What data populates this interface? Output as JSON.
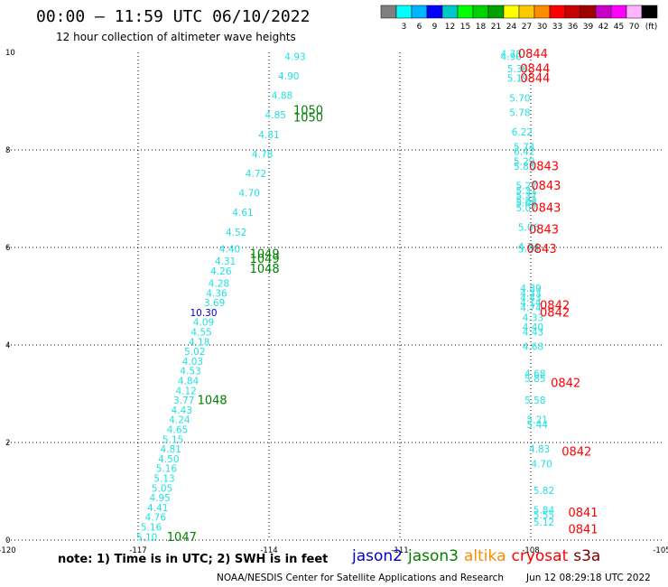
{
  "header": {
    "title": "00:00 – 11:59 UTC 06/10/2022",
    "subtitle": "12 hour collection of altimeter wave heights"
  },
  "colorbar": {
    "unit": "(ft)",
    "colors": [
      "#808080",
      "#00ffff",
      "#00b4ff",
      "#0000ff",
      "#00c8c8",
      "#00ff00",
      "#00d200",
      "#00a000",
      "#ffff00",
      "#ffc800",
      "#ff8c00",
      "#ff0000",
      "#c80000",
      "#a00000",
      "#c800c8",
      "#ff00ff",
      "#ffb4ff",
      "#000000"
    ],
    "labels": [
      "3",
      "6",
      "9",
      "12",
      "15",
      "18",
      "21",
      "24",
      "27",
      "30",
      "33",
      "36",
      "39",
      "42",
      "45",
      "70"
    ]
  },
  "footer": {
    "note": "note: 1) Time is in UTC; 2) SWH is in feet",
    "satellites": [
      {
        "name": "jason2",
        "color": "#0000cc"
      },
      {
        "name": "jason3",
        "color": "#008000"
      },
      {
        "name": "altika",
        "color": "#ff8c00"
      },
      {
        "name": "cryosat",
        "color": "#ff0000"
      },
      {
        "name": "s3a",
        "color": "#7a0000"
      }
    ],
    "credit": "NOAA/NESDIS Center for Satellite Applications and Research",
    "stamp": "Jun 12 08:29:18 UTC 2022"
  },
  "chart_data": {
    "type": "scatter",
    "title": "00:00 – 11:59 UTC 06/10/2022",
    "subtitle": "12 hour collection of altimeter wave heights",
    "xlim": [
      -120,
      -105
    ],
    "ylim": [
      0,
      10
    ],
    "x_ticks": [
      "-120",
      "-117",
      "-114",
      "-111",
      "-108",
      "-105"
    ],
    "y_ticks": [
      "0",
      "2",
      "4",
      "6",
      "8",
      "10"
    ],
    "grid": true,
    "series": [
      {
        "name": "jason3",
        "color": "#22e0e0",
        "points": [
          {
            "x": -116.8,
            "y": 0.05,
            "label": "5.10"
          },
          {
            "x": -116.7,
            "y": 0.25,
            "label": "5.16"
          },
          {
            "x": -116.6,
            "y": 0.45,
            "label": "4.76"
          },
          {
            "x": -116.55,
            "y": 0.65,
            "label": "4.41"
          },
          {
            "x": -116.5,
            "y": 0.85,
            "label": "4.95"
          },
          {
            "x": -116.45,
            "y": 1.05,
            "label": "5.05"
          },
          {
            "x": -116.4,
            "y": 1.25,
            "label": "5.13"
          },
          {
            "x": -116.35,
            "y": 1.45,
            "label": "5.16"
          },
          {
            "x": -116.3,
            "y": 1.65,
            "label": "4.50"
          },
          {
            "x": -116.25,
            "y": 1.85,
            "label": "4.81"
          },
          {
            "x": -116.2,
            "y": 2.05,
            "label": "5.15"
          },
          {
            "x": -116.1,
            "y": 2.25,
            "label": "4.65"
          },
          {
            "x": -116.05,
            "y": 2.45,
            "label": "4.24"
          },
          {
            "x": -116.0,
            "y": 2.65,
            "label": "4.43"
          },
          {
            "x": -115.95,
            "y": 2.85,
            "label": "3.77"
          },
          {
            "x": -115.9,
            "y": 3.05,
            "label": "4.12"
          },
          {
            "x": -115.85,
            "y": 3.25,
            "label": "4.84"
          },
          {
            "x": -115.8,
            "y": 3.45,
            "label": "4.53"
          },
          {
            "x": -115.75,
            "y": 3.65,
            "label": "4.03"
          },
          {
            "x": -115.7,
            "y": 3.85,
            "label": "5.02"
          },
          {
            "x": -115.6,
            "y": 4.05,
            "label": "4.18"
          },
          {
            "x": -115.55,
            "y": 4.25,
            "label": "4.55"
          },
          {
            "x": -115.5,
            "y": 4.45,
            "label": "4.09"
          },
          {
            "x": -115.25,
            "y": 4.85,
            "label": "3.69"
          },
          {
            "x": -115.2,
            "y": 5.05,
            "label": "4.36"
          },
          {
            "x": -115.15,
            "y": 5.25,
            "label": "4.28"
          },
          {
            "x": -115.1,
            "y": 5.5,
            "label": "4.26"
          },
          {
            "x": -115.0,
            "y": 5.7,
            "label": "4.31"
          },
          {
            "x": -114.9,
            "y": 5.95,
            "label": "4.40"
          },
          {
            "x": -114.75,
            "y": 6.3,
            "label": "4.52"
          },
          {
            "x": -114.6,
            "y": 6.7,
            "label": "4.61"
          },
          {
            "x": -114.45,
            "y": 7.1,
            "label": "4.70"
          },
          {
            "x": -114.3,
            "y": 7.5,
            "label": "4.72"
          },
          {
            "x": -114.15,
            "y": 7.9,
            "label": "4.78"
          },
          {
            "x": -114.0,
            "y": 8.3,
            "label": "4.81"
          },
          {
            "x": -113.85,
            "y": 8.7,
            "label": "4.85"
          },
          {
            "x": -113.7,
            "y": 9.1,
            "label": "4.88"
          },
          {
            "x": -113.55,
            "y": 9.5,
            "label": "4.90"
          },
          {
            "x": -113.4,
            "y": 9.9,
            "label": "4.93"
          }
        ]
      },
      {
        "name": "jason2",
        "color": "#0000cc",
        "points": [
          {
            "x": -115.5,
            "y": 4.65,
            "label": "10.30"
          }
        ]
      },
      {
        "name": "jason3",
        "color": "#008000",
        "points": [
          {
            "x": -116.0,
            "y": 0.05,
            "label": "1047"
          },
          {
            "x": -115.3,
            "y": 2.85,
            "label": "1048"
          },
          {
            "x": -114.1,
            "y": 5.55,
            "label": "1048"
          },
          {
            "x": -114.1,
            "y": 5.75,
            "label": "1049"
          },
          {
            "x": -114.1,
            "y": 5.85,
            "label": "1049"
          },
          {
            "x": -113.1,
            "y": 8.65,
            "label": "1050"
          },
          {
            "x": -113.1,
            "y": 8.8,
            "label": "1050"
          }
        ]
      },
      {
        "name": "jason3",
        "color": "#22e0e0",
        "points": [
          {
            "x": -107.7,
            "y": 0.35,
            "label": "5.12"
          },
          {
            "x": -107.7,
            "y": 0.5,
            "label": "5.55"
          },
          {
            "x": -107.7,
            "y": 0.6,
            "label": "5.84"
          },
          {
            "x": -107.7,
            "y": 1.0,
            "label": "5.82"
          },
          {
            "x": -107.75,
            "y": 1.55,
            "label": "4.70"
          },
          {
            "x": -107.8,
            "y": 1.85,
            "label": "4.83"
          },
          {
            "x": -107.85,
            "y": 2.35,
            "label": "5.44"
          },
          {
            "x": -107.85,
            "y": 2.45,
            "label": "5.21"
          },
          {
            "x": -107.9,
            "y": 2.85,
            "label": "5.58"
          },
          {
            "x": -107.9,
            "y": 3.3,
            "label": "5.85"
          },
          {
            "x": -107.9,
            "y": 3.4,
            "label": "4.68"
          },
          {
            "x": -107.95,
            "y": 3.95,
            "label": "4.68"
          },
          {
            "x": -107.95,
            "y": 4.25,
            "label": "4.43"
          },
          {
            "x": -107.95,
            "y": 4.35,
            "label": "4.40"
          },
          {
            "x": -107.95,
            "y": 4.55,
            "label": "4.33"
          },
          {
            "x": -108.0,
            "y": 4.75,
            "label": "4.74"
          },
          {
            "x": -108.0,
            "y": 4.85,
            "label": "4.14"
          },
          {
            "x": -108.0,
            "y": 4.95,
            "label": "4.43"
          },
          {
            "x": -108.0,
            "y": 5.05,
            "label": "4.33"
          },
          {
            "x": -108.0,
            "y": 5.15,
            "label": "4.89"
          },
          {
            "x": -108.05,
            "y": 5.95,
            "label": "5.00"
          },
          {
            "x": -108.05,
            "y": 6.0,
            "label": "4.74"
          },
          {
            "x": -108.05,
            "y": 6.4,
            "label": "5.06"
          },
          {
            "x": -108.1,
            "y": 6.8,
            "label": "5.07"
          },
          {
            "x": -108.1,
            "y": 6.9,
            "label": "5.08"
          },
          {
            "x": -108.1,
            "y": 6.95,
            "label": "5.22"
          },
          {
            "x": -108.1,
            "y": 7.05,
            "label": "5.37"
          },
          {
            "x": -108.1,
            "y": 7.15,
            "label": "5.31"
          },
          {
            "x": -108.1,
            "y": 7.25,
            "label": "5.27"
          },
          {
            "x": -108.15,
            "y": 7.65,
            "label": "5.83"
          },
          {
            "x": -108.15,
            "y": 7.75,
            "label": "5.29"
          },
          {
            "x": -108.15,
            "y": 7.95,
            "label": "6.42"
          },
          {
            "x": -108.15,
            "y": 8.05,
            "label": "5.74"
          },
          {
            "x": -108.2,
            "y": 8.35,
            "label": "6.22"
          },
          {
            "x": -108.25,
            "y": 8.75,
            "label": "5.78"
          },
          {
            "x": -108.25,
            "y": 9.05,
            "label": "5.70"
          },
          {
            "x": -108.3,
            "y": 9.45,
            "label": "5.19"
          },
          {
            "x": -108.3,
            "y": 9.65,
            "label": "5.36"
          },
          {
            "x": -108.45,
            "y": 9.9,
            "label": "4.90"
          },
          {
            "x": -108.45,
            "y": 9.95,
            "label": "4.78"
          }
        ]
      },
      {
        "name": "cryosat",
        "color": "#ff0000",
        "points": [
          {
            "x": -106.8,
            "y": 0.2,
            "label": "0841"
          },
          {
            "x": -106.8,
            "y": 0.55,
            "label": "0841"
          },
          {
            "x": -106.95,
            "y": 1.8,
            "label": "0842"
          },
          {
            "x": -107.2,
            "y": 3.2,
            "label": "0842"
          },
          {
            "x": -107.45,
            "y": 4.65,
            "label": "0842"
          },
          {
            "x": -107.45,
            "y": 4.8,
            "label": "0842"
          },
          {
            "x": -107.75,
            "y": 5.95,
            "label": "0843"
          },
          {
            "x": -107.7,
            "y": 6.35,
            "label": "0843"
          },
          {
            "x": -107.65,
            "y": 6.8,
            "label": "0843"
          },
          {
            "x": -107.65,
            "y": 7.25,
            "label": "0843"
          },
          {
            "x": -107.7,
            "y": 7.65,
            "label": "0843"
          },
          {
            "x": -107.9,
            "y": 9.45,
            "label": "0844"
          },
          {
            "x": -107.9,
            "y": 9.65,
            "label": "0844"
          },
          {
            "x": -107.95,
            "y": 9.95,
            "label": "0844"
          }
        ]
      }
    ]
  }
}
